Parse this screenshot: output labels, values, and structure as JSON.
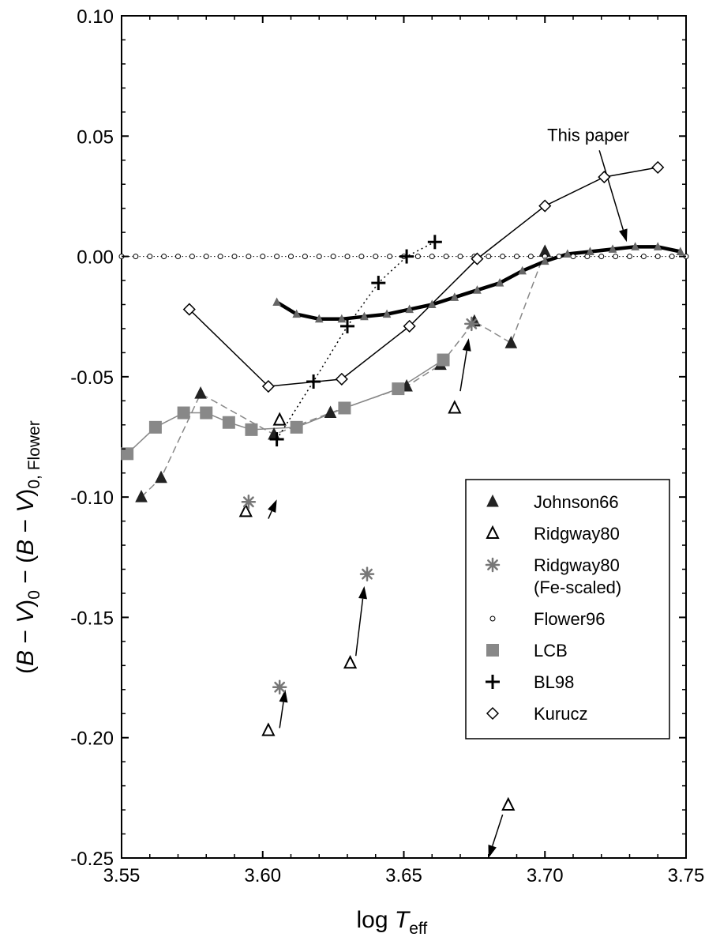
{
  "chart_data": {
    "type": "scatter",
    "xlabel_main": "log ",
    "xlabel_var": "T",
    "xlabel_sub": "eff",
    "ylabel": "(B − V)0 − (B − V)0, Flower",
    "ylabel_parts": {
      "open": "(",
      "b": "B",
      "minus": " − ",
      "v": "V",
      "close": ")",
      "sub0": "0",
      "mid": " − (",
      "sub_flower": "0, Flower"
    },
    "xlim": [
      3.55,
      3.75
    ],
    "ylim": [
      -0.25,
      0.1
    ],
    "xticks": [
      "3.55",
      "3.60",
      "3.65",
      "3.70",
      "3.75"
    ],
    "xtick_values": [
      3.55,
      3.6,
      3.65,
      3.7,
      3.75
    ],
    "yticks": [
      "0.10",
      "0.05",
      "0.00",
      "-0.05",
      "-0.10",
      "-0.15",
      "-0.20",
      "-0.25"
    ],
    "ytick_values": [
      0.1,
      0.05,
      0.0,
      -0.05,
      -0.1,
      -0.15,
      -0.2,
      -0.25
    ],
    "grid": false,
    "legend_placement": "lower-right",
    "annotation": {
      "text": "This paper",
      "x": 3.712,
      "y": 0.05,
      "arrow_to": [
        3.729,
        0.006
      ]
    },
    "series": [
      {
        "name": "Johnson66",
        "marker": "triangle-filled",
        "points": [
          [
            3.557,
            -0.1
          ],
          [
            3.564,
            -0.092
          ],
          [
            3.578,
            -0.057
          ],
          [
            3.604,
            -0.074
          ],
          [
            3.624,
            -0.065
          ],
          [
            3.651,
            -0.054
          ],
          [
            3.663,
            -0.045
          ],
          [
            3.675,
            -0.027
          ],
          [
            3.688,
            -0.036
          ],
          [
            3.7,
            0.002
          ]
        ],
        "line": {
          "style": "dashed",
          "color": "#888888",
          "order": [
            [
              3.557,
              -0.1
            ],
            [
              3.564,
              -0.092
            ],
            [
              3.578,
              -0.057
            ],
            [
              3.604,
              -0.074
            ],
            [
              3.624,
              -0.065
            ],
            [
              3.651,
              -0.054
            ],
            [
              3.663,
              -0.045
            ],
            [
              3.675,
              -0.027
            ],
            [
              3.688,
              -0.036
            ],
            [
              3.7,
              0.002
            ]
          ]
        }
      },
      {
        "name": "Ridgway80",
        "marker": "triangle-open",
        "points": [
          [
            3.594,
            -0.106
          ],
          [
            3.606,
            -0.068
          ],
          [
            3.602,
            -0.197
          ],
          [
            3.631,
            -0.169
          ],
          [
            3.668,
            -0.063
          ],
          [
            3.687,
            -0.228
          ]
        ]
      },
      {
        "name": "Ridgway80",
        "name_line2": "(Fe-scaled)",
        "marker": "asterisk",
        "points": [
          [
            3.595,
            -0.102
          ],
          [
            3.606,
            -0.179
          ],
          [
            3.637,
            -0.132
          ],
          [
            3.674,
            -0.028
          ]
        ]
      },
      {
        "name": "Flower96",
        "marker": "circle-open-small",
        "x_start": 3.55,
        "x_end": 3.75,
        "x_step": 0.005,
        "y": 0.0
      },
      {
        "name": "LCB",
        "marker": "square-filled",
        "points": [
          [
            3.552,
            -0.082
          ],
          [
            3.562,
            -0.071
          ],
          [
            3.572,
            -0.065
          ],
          [
            3.58,
            -0.065
          ],
          [
            3.588,
            -0.069
          ],
          [
            3.596,
            -0.072
          ],
          [
            3.612,
            -0.071
          ],
          [
            3.629,
            -0.063
          ],
          [
            3.648,
            -0.055
          ],
          [
            3.664,
            -0.043
          ]
        ],
        "line": {
          "style": "solid",
          "color": "#888888"
        }
      },
      {
        "name": "BL98",
        "marker": "plus",
        "points": [
          [
            3.605,
            -0.076
          ],
          [
            3.618,
            -0.052
          ],
          [
            3.63,
            -0.029
          ],
          [
            3.641,
            -0.011
          ],
          [
            3.651,
            0.0
          ],
          [
            3.661,
            0.006
          ]
        ],
        "line": {
          "style": "dotted",
          "color": "#000000"
        }
      },
      {
        "name": "Kurucz",
        "marker": "diamond-open",
        "points": [
          [
            3.574,
            -0.022
          ],
          [
            3.602,
            -0.054
          ],
          [
            3.628,
            -0.051
          ],
          [
            3.652,
            -0.029
          ],
          [
            3.676,
            -0.001
          ],
          [
            3.7,
            0.021
          ],
          [
            3.721,
            0.033
          ],
          [
            3.74,
            0.037
          ]
        ],
        "line": {
          "style": "solid",
          "color": "#000000"
        }
      },
      {
        "name": "This paper",
        "marker": "triangle-small-gray",
        "points": [
          [
            3.605,
            -0.019
          ],
          [
            3.612,
            -0.024
          ],
          [
            3.62,
            -0.026
          ],
          [
            3.628,
            -0.026
          ],
          [
            3.636,
            -0.025
          ],
          [
            3.644,
            -0.024
          ],
          [
            3.652,
            -0.022
          ],
          [
            3.66,
            -0.02
          ],
          [
            3.668,
            -0.017
          ],
          [
            3.676,
            -0.014
          ],
          [
            3.684,
            -0.011
          ],
          [
            3.692,
            -0.006
          ],
          [
            3.7,
            -0.002
          ],
          [
            3.708,
            0.001
          ],
          [
            3.716,
            0.002
          ],
          [
            3.724,
            0.003
          ],
          [
            3.732,
            0.004
          ],
          [
            3.74,
            0.004
          ],
          [
            3.748,
            0.002
          ]
        ],
        "line": {
          "style": "solid-thick",
          "color": "#000000"
        },
        "in_legend": false
      }
    ],
    "arrows": [
      {
        "from": [
          3.602,
          -0.109
        ],
        "to": [
          3.605,
          -0.101
        ]
      },
      {
        "from": [
          3.606,
          -0.196
        ],
        "to": [
          3.608,
          -0.18
        ]
      },
      {
        "from": [
          3.633,
          -0.166
        ],
        "to": [
          3.636,
          -0.137
        ]
      },
      {
        "from": [
          3.67,
          -0.056
        ],
        "to": [
          3.673,
          -0.034
        ]
      },
      {
        "from": [
          3.685,
          -0.232
        ],
        "to": [
          3.68,
          -0.25
        ]
      }
    ]
  },
  "legend": {
    "items": [
      {
        "label": "Johnson66",
        "marker": "triangle-filled"
      },
      {
        "label": "Ridgway80",
        "marker": "triangle-open"
      },
      {
        "label": "Ridgway80",
        "label2": "(Fe-scaled)",
        "marker": "asterisk"
      },
      {
        "label": "Flower96",
        "marker": "circle-open-small"
      },
      {
        "label": "LCB",
        "marker": "square-filled"
      },
      {
        "label": "BL98",
        "marker": "plus"
      },
      {
        "label": "Kurucz",
        "marker": "diamond-open"
      }
    ]
  },
  "colors": {
    "axis": "#000000",
    "gray_marker": "#777777",
    "gray_line": "#888888"
  }
}
